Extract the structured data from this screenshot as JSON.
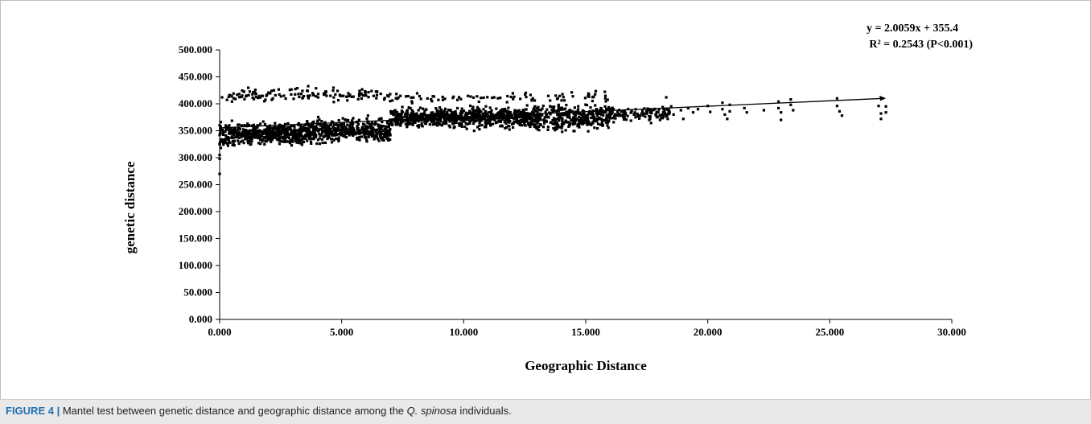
{
  "chart_data": {
    "type": "scatter",
    "xlabel": "Geographic Distance",
    "ylabel": "genetic distance",
    "xlim": [
      0,
      30
    ],
    "ylim": [
      0,
      500
    ],
    "x_ticks": [
      "0.000",
      "5.000",
      "10.000",
      "15.000",
      "20.000",
      "25.000",
      "30.000"
    ],
    "y_ticks": [
      "0.000",
      "50.000",
      "100.000",
      "150.000",
      "200.000",
      "250.000",
      "300.000",
      "350.000",
      "400.000",
      "450.000",
      "500.000"
    ],
    "trendline": {
      "slope": 2.0059,
      "intercept": 355.4,
      "x_range": [
        0,
        27.2
      ]
    },
    "equation": "y = 2.0059x + 355.4",
    "r_squared": "R² = 0.2543 (P<0.001)",
    "grid": false,
    "marker_color": "#000000",
    "clusters": [
      {
        "x_range": [
          0,
          1
        ],
        "y_range": [
          310,
          372
        ],
        "count": 110
      },
      {
        "x_range": [
          1,
          4
        ],
        "y_range": [
          318,
          372
        ],
        "count": 460
      },
      {
        "x_range": [
          4,
          7
        ],
        "y_range": [
          322,
          380
        ],
        "count": 380
      },
      {
        "x_range": [
          7,
          10
        ],
        "y_range": [
          350,
          398
        ],
        "count": 420
      },
      {
        "x_range": [
          10,
          13
        ],
        "y_range": [
          348,
          400
        ],
        "count": 400
      },
      {
        "x_range": [
          13,
          16
        ],
        "y_range": [
          342,
          408
        ],
        "count": 320
      },
      {
        "x_range": [
          16,
          18.5
        ],
        "y_range": [
          362,
          400
        ],
        "count": 110
      },
      {
        "x_range": [
          0.3,
          6.5
        ],
        "y_range": [
          400,
          435
        ],
        "count": 130
      },
      {
        "x_range": [
          6.5,
          16
        ],
        "y_range": [
          398,
          425
        ],
        "count": 90
      }
    ],
    "points": [
      [
        0.0,
        270
      ],
      [
        0.0,
        298
      ],
      [
        0.0,
        305
      ],
      [
        0.05,
        318
      ],
      [
        0.0,
        326
      ],
      [
        0.05,
        334
      ],
      [
        0.0,
        342
      ],
      [
        0.05,
        352
      ],
      [
        0.0,
        360
      ],
      [
        0.05,
        366
      ],
      [
        0.1,
        412
      ],
      [
        0.4,
        416
      ],
      [
        0.8,
        418
      ],
      [
        1.1,
        415
      ],
      [
        18.3,
        412
      ],
      [
        18.5,
        395
      ],
      [
        18.6,
        380
      ],
      [
        18.9,
        388
      ],
      [
        19.0,
        372
      ],
      [
        19.2,
        392
      ],
      [
        19.4,
        384
      ],
      [
        19.6,
        390
      ],
      [
        20.0,
        396
      ],
      [
        20.1,
        385
      ],
      [
        20.6,
        402
      ],
      [
        20.6,
        390
      ],
      [
        20.7,
        380
      ],
      [
        20.8,
        372
      ],
      [
        20.9,
        398
      ],
      [
        20.9,
        386
      ],
      [
        21.5,
        392
      ],
      [
        21.6,
        384
      ],
      [
        22.3,
        388
      ],
      [
        22.9,
        404
      ],
      [
        22.9,
        392
      ],
      [
        23.0,
        384
      ],
      [
        23.0,
        370
      ],
      [
        23.4,
        408
      ],
      [
        23.4,
        398
      ],
      [
        23.5,
        388
      ],
      [
        25.3,
        410
      ],
      [
        25.3,
        396
      ],
      [
        25.4,
        386
      ],
      [
        25.5,
        378
      ],
      [
        27.0,
        396
      ],
      [
        27.1,
        382
      ],
      [
        27.1,
        372
      ],
      [
        27.3,
        395
      ],
      [
        27.3,
        384
      ]
    ]
  },
  "caption": {
    "label": "FIGURE 4 |",
    "text_before": " Mantel test between genetic distance and geographic distance among the ",
    "species": "Q. spinosa",
    "text_after": " individuals."
  }
}
